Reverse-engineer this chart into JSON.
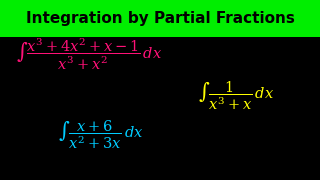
{
  "title": "Integration by Partial Fractions",
  "title_bg": "#00ee00",
  "title_color": "#000000",
  "bg_color": "#000000",
  "formula1_color": "#ff1177",
  "formula2_color": "#00ccff",
  "formula3_color": "#ffff00",
  "formula1": "$\\int\\dfrac{x^3+4x^2+x-1}{x^3+x^2}\\,dx$",
  "formula2": "$\\int\\dfrac{x+6}{x^2+3x}\\,dx$",
  "formula3": "$\\int\\dfrac{1}{x^3+x}\\,dx$",
  "title_fontsize": 11.0,
  "formula_fontsize": 10.5
}
